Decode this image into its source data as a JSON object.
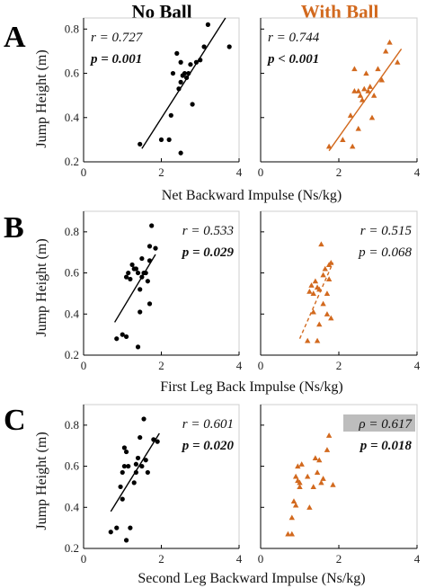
{
  "column_titles": {
    "left": "No Ball",
    "right": "With Ball"
  },
  "colors": {
    "no_ball": "#000000",
    "with_ball": "#d2691e",
    "highlight": "#bdbdbd"
  },
  "ylabel": "Jump Height (m)",
  "chart_data": [
    {
      "panel": "A",
      "condition": "No Ball",
      "type": "scatter",
      "xlabel": "Net Backward Impulse (Ns/kg)",
      "xlim": [
        0,
        4
      ],
      "ylim": [
        0.2,
        0.85
      ],
      "xticks": [
        "0",
        "2",
        "4"
      ],
      "yticks": [
        "0.2",
        "0.4",
        "0.6",
        "0.8"
      ],
      "stats": {
        "r": "r = 0.727",
        "p": "p = 0.001"
      },
      "fit": {
        "style": "solid",
        "x": [
          1.5,
          3.65
        ],
        "y": [
          0.26,
          0.85
        ]
      },
      "points": [
        [
          1.45,
          0.28
        ],
        [
          2.0,
          0.3
        ],
        [
          2.2,
          0.3
        ],
        [
          2.25,
          0.41
        ],
        [
          2.3,
          0.6
        ],
        [
          2.4,
          0.69
        ],
        [
          2.45,
          0.53
        ],
        [
          2.5,
          0.24
        ],
        [
          2.5,
          0.65
        ],
        [
          2.5,
          0.56
        ],
        [
          2.55,
          0.59
        ],
        [
          2.6,
          0.6
        ],
        [
          2.65,
          0.58
        ],
        [
          2.7,
          0.6
        ],
        [
          2.75,
          0.64
        ],
        [
          2.8,
          0.46
        ],
        [
          2.9,
          0.65
        ],
        [
          3.0,
          0.66
        ],
        [
          3.1,
          0.72
        ],
        [
          3.2,
          0.82
        ],
        [
          3.75,
          0.72
        ]
      ]
    },
    {
      "panel": "A",
      "condition": "With Ball",
      "type": "scatter",
      "xlabel": "Net Backward Impulse (Ns/kg)",
      "xlim": [
        0,
        4
      ],
      "ylim": [
        0.2,
        0.85
      ],
      "xticks": [
        "0",
        "2",
        "4"
      ],
      "yticks": [],
      "stats": {
        "r": "r = 0.744",
        "p": "p < 0.001"
      },
      "fit": {
        "style": "solid",
        "x": [
          1.75,
          3.6
        ],
        "y": [
          0.25,
          0.71
        ]
      },
      "points": [
        [
          1.75,
          0.27
        ],
        [
          2.1,
          0.3
        ],
        [
          2.35,
          0.27
        ],
        [
          2.3,
          0.41
        ],
        [
          2.4,
          0.52
        ],
        [
          2.4,
          0.62
        ],
        [
          2.5,
          0.52
        ],
        [
          2.5,
          0.35
        ],
        [
          2.55,
          0.5
        ],
        [
          2.6,
          0.48
        ],
        [
          2.65,
          0.53
        ],
        [
          2.7,
          0.6
        ],
        [
          2.75,
          0.52
        ],
        [
          2.8,
          0.54
        ],
        [
          2.85,
          0.4
        ],
        [
          2.9,
          0.5
        ],
        [
          3.0,
          0.62
        ],
        [
          3.1,
          0.57
        ],
        [
          3.2,
          0.7
        ],
        [
          3.3,
          0.74
        ],
        [
          3.5,
          0.65
        ]
      ]
    },
    {
      "panel": "B",
      "condition": "No Ball",
      "type": "scatter",
      "xlabel": "First Leg Back Impulse (Ns/kg)",
      "xlim": [
        0,
        4
      ],
      "ylim": [
        0.2,
        0.9
      ],
      "xticks": [
        "0",
        "2",
        "4"
      ],
      "yticks": [
        "0.2",
        "0.4",
        "0.6",
        "0.8"
      ],
      "stats": {
        "r": "r = 0.533",
        "p": "p = 0.029"
      },
      "fit": {
        "style": "solid",
        "x": [
          0.8,
          1.85
        ],
        "y": [
          0.36,
          0.69
        ]
      },
      "points": [
        [
          0.85,
          0.28
        ],
        [
          1.0,
          0.3
        ],
        [
          1.1,
          0.29
        ],
        [
          1.1,
          0.58
        ],
        [
          1.15,
          0.6
        ],
        [
          1.2,
          0.57
        ],
        [
          1.25,
          0.64
        ],
        [
          1.3,
          0.62
        ],
        [
          1.35,
          0.62
        ],
        [
          1.4,
          0.24
        ],
        [
          1.4,
          0.6
        ],
        [
          1.45,
          0.52
        ],
        [
          1.45,
          0.41
        ],
        [
          1.5,
          0.58
        ],
        [
          1.5,
          0.67
        ],
        [
          1.55,
          0.6
        ],
        [
          1.6,
          0.6
        ],
        [
          1.65,
          0.56
        ],
        [
          1.7,
          0.45
        ],
        [
          1.7,
          0.73
        ],
        [
          1.7,
          0.66
        ],
        [
          1.75,
          0.83
        ],
        [
          1.85,
          0.72
        ]
      ]
    },
    {
      "panel": "B",
      "condition": "With Ball",
      "type": "scatter",
      "xlabel": "First Leg Back Impulse (Ns/kg)",
      "xlim": [
        0,
        4
      ],
      "ylim": [
        0.2,
        0.9
      ],
      "xticks": [
        "0",
        "2",
        "4"
      ],
      "yticks": [],
      "stats": {
        "r": "r = 0.515",
        "p": "p = 0.068"
      },
      "fit": {
        "style": "dashed",
        "x": [
          1.0,
          1.85
        ],
        "y": [
          0.28,
          0.65
        ]
      },
      "points": [
        [
          1.2,
          0.27
        ],
        [
          1.25,
          0.51
        ],
        [
          1.3,
          0.54
        ],
        [
          1.35,
          0.5
        ],
        [
          1.35,
          0.41
        ],
        [
          1.4,
          0.56
        ],
        [
          1.45,
          0.53
        ],
        [
          1.45,
          0.27
        ],
        [
          1.5,
          0.35
        ],
        [
          1.5,
          0.52
        ],
        [
          1.55,
          0.74
        ],
        [
          1.6,
          0.59
        ],
        [
          1.6,
          0.45
        ],
        [
          1.65,
          0.62
        ],
        [
          1.7,
          0.4
        ],
        [
          1.7,
          0.5
        ],
        [
          1.75,
          0.57
        ],
        [
          1.75,
          0.64
        ],
        [
          1.8,
          0.65
        ],
        [
          1.8,
          0.38
        ]
      ]
    },
    {
      "panel": "C",
      "condition": "No Ball",
      "type": "scatter",
      "xlabel": "Second Leg Backward Impulse (Ns/kg)",
      "xlim": [
        0,
        4
      ],
      "ylim": [
        0.2,
        0.9
      ],
      "xticks": [
        "0",
        "2",
        "4"
      ],
      "yticks": [
        "0.2",
        "0.4",
        "0.6",
        "0.8"
      ],
      "stats": {
        "r": "r = 0.601",
        "p": "p = 0.020"
      },
      "fit": {
        "style": "solid",
        "x": [
          0.7,
          1.95
        ],
        "y": [
          0.38,
          0.76
        ]
      },
      "points": [
        [
          0.7,
          0.28
        ],
        [
          0.85,
          0.3
        ],
        [
          1.0,
          0.44
        ],
        [
          0.95,
          0.5
        ],
        [
          1.0,
          0.57
        ],
        [
          1.05,
          0.6
        ],
        [
          1.05,
          0.69
        ],
        [
          1.1,
          0.67
        ],
        [
          1.15,
          0.6
        ],
        [
          1.1,
          0.24
        ],
        [
          1.2,
          0.3
        ],
        [
          1.3,
          0.52
        ],
        [
          1.35,
          0.57
        ],
        [
          1.35,
          0.61
        ],
        [
          1.4,
          0.64
        ],
        [
          1.45,
          0.74
        ],
        [
          1.5,
          0.6
        ],
        [
          1.55,
          0.83
        ],
        [
          1.6,
          0.63
        ],
        [
          1.65,
          0.57
        ],
        [
          1.8,
          0.73
        ],
        [
          1.9,
          0.72
        ]
      ]
    },
    {
      "panel": "C",
      "condition": "With Ball",
      "type": "scatter",
      "xlabel": "Second Leg Backward Impulse (Ns/kg)",
      "xlim": [
        0,
        4
      ],
      "ylim": [
        0.2,
        0.9
      ],
      "xticks": [
        "0",
        "2",
        "4"
      ],
      "yticks": [],
      "stats": {
        "r": "ρ = 0.617",
        "p": "p = 0.018"
      },
      "fit": null,
      "points": [
        [
          0.7,
          0.27
        ],
        [
          0.8,
          0.27
        ],
        [
          0.8,
          0.35
        ],
        [
          0.85,
          0.43
        ],
        [
          0.9,
          0.41
        ],
        [
          0.9,
          0.55
        ],
        [
          0.95,
          0.53
        ],
        [
          0.95,
          0.6
        ],
        [
          1.0,
          0.5
        ],
        [
          1.0,
          0.52
        ],
        [
          1.05,
          0.61
        ],
        [
          1.2,
          0.55
        ],
        [
          1.25,
          0.4
        ],
        [
          1.35,
          0.5
        ],
        [
          1.4,
          0.64
        ],
        [
          1.45,
          0.57
        ],
        [
          1.5,
          0.63
        ],
        [
          1.55,
          0.52
        ],
        [
          1.6,
          0.54
        ],
        [
          1.7,
          0.68
        ],
        [
          1.75,
          0.75
        ],
        [
          1.85,
          0.51
        ]
      ]
    }
  ]
}
